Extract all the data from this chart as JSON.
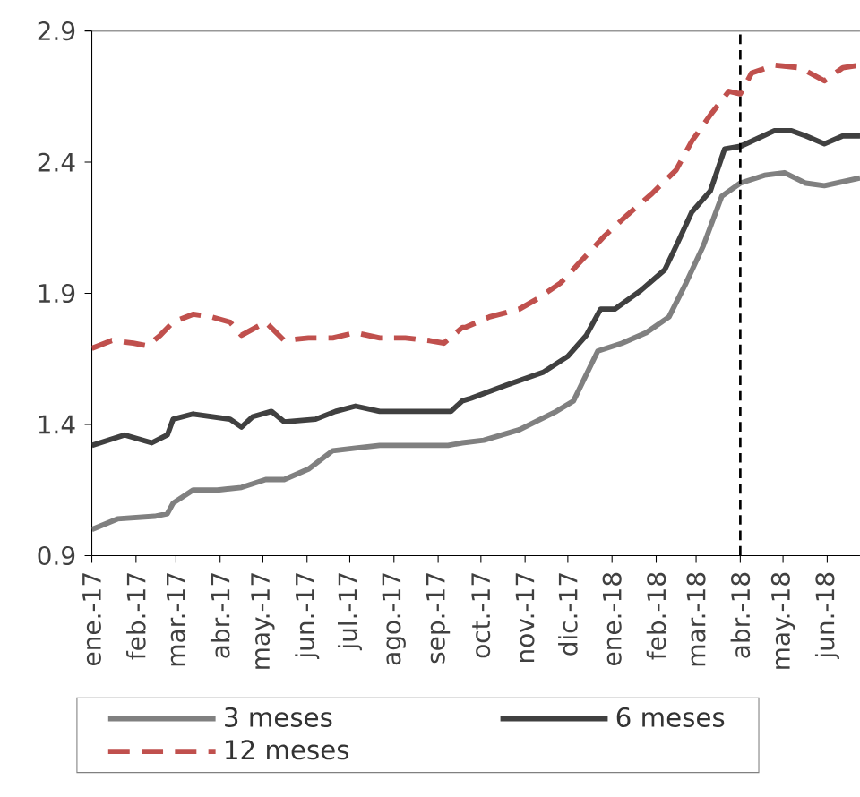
{
  "chart_data": {
    "type": "line",
    "xlim": [
      "2017-01-01",
      "2018-06-24"
    ],
    "ylim": [
      0.9,
      2.9
    ],
    "yticks": [
      0.9,
      1.4,
      1.9,
      2.4,
      2.9
    ],
    "xticks": [
      {
        "value": "2017-01-01",
        "label": "ene.-17"
      },
      {
        "value": "2017-02-01",
        "label": "feb.-17"
      },
      {
        "value": "2017-03-01",
        "label": "mar.-17"
      },
      {
        "value": "2017-04-01",
        "label": "abr.-17"
      },
      {
        "value": "2017-05-01",
        "label": "may.-17"
      },
      {
        "value": "2017-06-01",
        "label": "jun.-17"
      },
      {
        "value": "2017-07-01",
        "label": "jul.-17"
      },
      {
        "value": "2017-08-01",
        "label": "ago.-17"
      },
      {
        "value": "2017-09-01",
        "label": "sep.-17"
      },
      {
        "value": "2017-10-01",
        "label": "oct.-17"
      },
      {
        "value": "2017-11-01",
        "label": "nov.-17"
      },
      {
        "value": "2017-12-01",
        "label": "dic.-17"
      },
      {
        "value": "2018-01-01",
        "label": "ene.-18"
      },
      {
        "value": "2018-02-01",
        "label": "feb.-18"
      },
      {
        "value": "2018-03-01",
        "label": "mar.-18"
      },
      {
        "value": "2018-04-01",
        "label": "abr.-18"
      },
      {
        "value": "2018-05-01",
        "label": "may.-18"
      },
      {
        "value": "2018-06-01",
        "label": "jun.-18"
      }
    ],
    "grid": false,
    "legend": "bottom",
    "ref_lines": [
      {
        "axis": "x",
        "value": "2018-04-01",
        "color": "#000000",
        "line_style": "dashed"
      }
    ],
    "series": [
      {
        "name": "3 meses",
        "color": "#808080",
        "line_style": "solid",
        "x": [
          "2017-01-01",
          "2017-01-19",
          "2017-02-14",
          "2017-02-23",
          "2017-02-27",
          "2017-03-13",
          "2017-03-30",
          "2017-04-16",
          "2017-05-03",
          "2017-05-16",
          "2017-06-02",
          "2017-06-19",
          "2017-07-05",
          "2017-07-22",
          "2017-08-26",
          "2017-09-08",
          "2017-09-18",
          "2017-10-03",
          "2017-10-28",
          "2017-11-23",
          "2017-12-05",
          "2017-12-22",
          "2018-01-08",
          "2018-01-25",
          "2018-02-10",
          "2018-02-22",
          "2018-03-06",
          "2018-03-19",
          "2018-04-01",
          "2018-04-18",
          "2018-05-02",
          "2018-05-17",
          "2018-05-30",
          "2018-06-24"
        ],
        "values": [
          1.0,
          1.04,
          1.05,
          1.06,
          1.1,
          1.15,
          1.15,
          1.16,
          1.19,
          1.19,
          1.23,
          1.3,
          1.31,
          1.32,
          1.32,
          1.32,
          1.33,
          1.34,
          1.38,
          1.45,
          1.49,
          1.68,
          1.71,
          1.75,
          1.81,
          1.94,
          2.08,
          2.27,
          2.32,
          2.35,
          2.36,
          2.32,
          2.31,
          2.34
        ]
      },
      {
        "name": "6 meses",
        "color": "#404040",
        "line_style": "solid",
        "x": [
          "2017-01-01",
          "2017-01-24",
          "2017-02-12",
          "2017-02-23",
          "2017-02-27",
          "2017-03-13",
          "2017-04-08",
          "2017-04-16",
          "2017-04-24",
          "2017-05-07",
          "2017-05-16",
          "2017-06-07",
          "2017-06-21",
          "2017-07-05",
          "2017-07-22",
          "2017-08-26",
          "2017-09-10",
          "2017-09-18",
          "2017-09-24",
          "2017-10-19",
          "2017-11-14",
          "2017-12-01",
          "2017-12-14",
          "2017-12-24",
          "2018-01-03",
          "2018-01-21",
          "2018-02-07",
          "2018-02-15",
          "2018-02-26",
          "2018-03-11",
          "2018-03-21",
          "2018-04-01",
          "2018-04-13",
          "2018-04-25",
          "2018-05-07",
          "2018-05-17",
          "2018-05-30",
          "2018-06-12",
          "2018-06-24"
        ],
        "values": [
          1.32,
          1.36,
          1.33,
          1.36,
          1.42,
          1.44,
          1.42,
          1.39,
          1.43,
          1.45,
          1.41,
          1.42,
          1.45,
          1.47,
          1.45,
          1.45,
          1.45,
          1.49,
          1.5,
          1.55,
          1.6,
          1.66,
          1.74,
          1.84,
          1.84,
          1.91,
          1.99,
          2.08,
          2.21,
          2.29,
          2.45,
          2.46,
          2.49,
          2.52,
          2.52,
          2.5,
          2.47,
          2.5,
          2.5
        ]
      },
      {
        "name": "12 meses",
        "color": "#c0504d",
        "line_style": "dashed",
        "x": [
          "2017-01-01",
          "2017-01-15",
          "2017-01-30",
          "2017-02-09",
          "2017-02-18",
          "2017-02-27",
          "2017-03-13",
          "2017-03-26",
          "2017-04-08",
          "2017-04-16",
          "2017-05-03",
          "2017-05-16",
          "2017-06-02",
          "2017-06-19",
          "2017-07-05",
          "2017-07-22",
          "2017-08-09",
          "2017-08-26",
          "2017-09-05",
          "2017-09-18",
          "2017-09-20",
          "2017-10-07",
          "2017-10-28",
          "2017-11-10",
          "2017-11-26",
          "2017-12-08",
          "2017-12-27",
          "2018-01-12",
          "2018-01-29",
          "2018-02-15",
          "2018-02-26",
          "2018-03-11",
          "2018-03-24",
          "2018-04-01",
          "2018-04-09",
          "2018-04-25",
          "2018-05-13",
          "2018-05-30",
          "2018-06-12",
          "2018-06-24"
        ],
        "values": [
          1.69,
          1.72,
          1.71,
          1.7,
          1.74,
          1.79,
          1.82,
          1.81,
          1.79,
          1.74,
          1.79,
          1.72,
          1.73,
          1.73,
          1.75,
          1.73,
          1.73,
          1.72,
          1.71,
          1.77,
          1.77,
          1.81,
          1.84,
          1.88,
          1.94,
          2.01,
          2.12,
          2.2,
          2.28,
          2.37,
          2.48,
          2.58,
          2.67,
          2.66,
          2.74,
          2.77,
          2.76,
          2.71,
          2.76,
          2.77
        ]
      }
    ]
  }
}
